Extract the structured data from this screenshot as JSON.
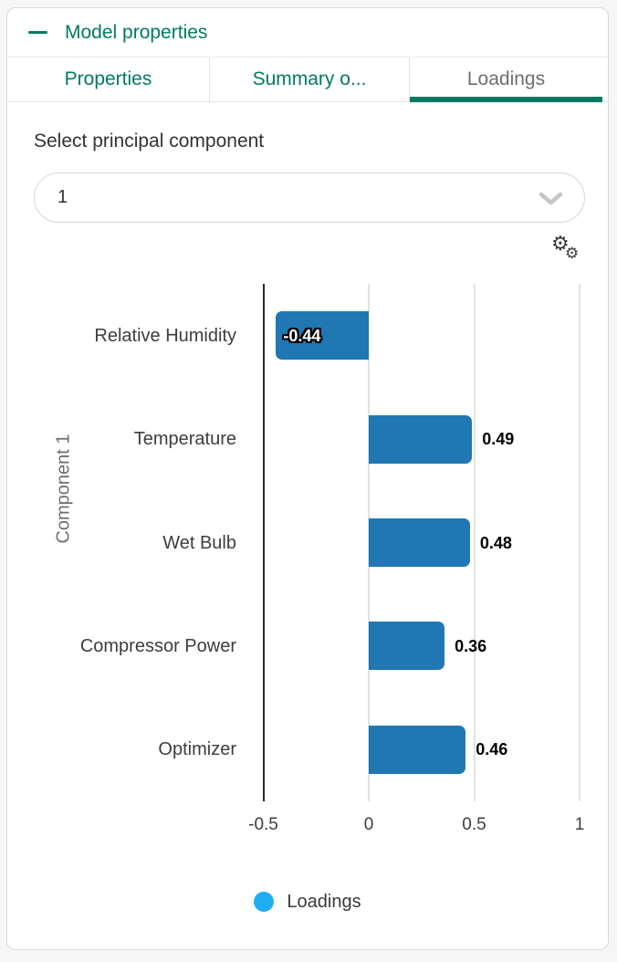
{
  "panel": {
    "title": "Model properties"
  },
  "tabs": [
    {
      "label": "Properties",
      "active": false
    },
    {
      "label": "Summary o...",
      "active": false
    },
    {
      "label": "Loadings",
      "active": true
    }
  ],
  "controls": {
    "select_label": "Select principal component",
    "selected_component": "1"
  },
  "icons": {
    "collapse": "minus-dash",
    "dropdown": "chevron-down",
    "settings": "double-gear"
  },
  "colors": {
    "accent_teal": "#007a63",
    "bar_blue": "#2077b4",
    "legend_marker_blue": "#21adf3",
    "active_tab_text": "#6e6e6e",
    "axis_line": "#2b2b2b",
    "gridline": "#e2e2e2"
  },
  "chart_data": {
    "type": "bar",
    "orientation": "horizontal",
    "categories": [
      "Relative Humidity",
      "Temperature",
      "Wet Bulb",
      "Compressor Power",
      "Optimizer"
    ],
    "values": [
      -0.44,
      0.49,
      0.48,
      0.36,
      0.46
    ],
    "value_labels": [
      "-0.44",
      "0.49",
      "0.48",
      "0.36",
      "0.46"
    ],
    "series_name": "Loadings",
    "ylabel": "Component 1",
    "xlabel": "",
    "xlim": [
      -0.5,
      1
    ],
    "xticks": [
      -0.5,
      0,
      0.5,
      1
    ],
    "xtick_labels": [
      "-0.5",
      "0",
      "0.5",
      "1"
    ],
    "grid": true,
    "legend": {
      "position": "bottom",
      "label": "Loadings"
    }
  }
}
